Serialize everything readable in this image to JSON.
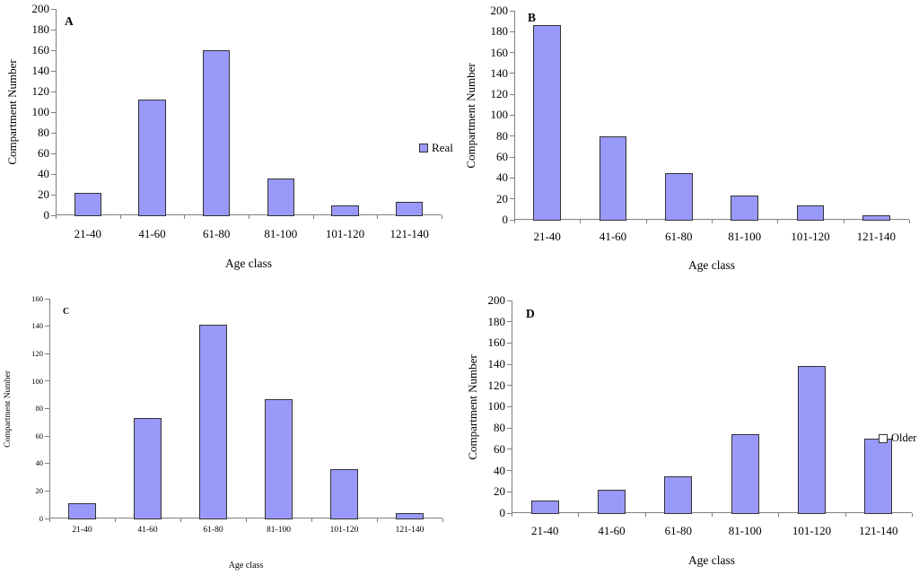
{
  "chart_data": [
    {
      "type": "bar",
      "panel_label": "A",
      "title": "",
      "categories": [
        "21-40",
        "41-60",
        "61-80",
        "81-100",
        "101-120",
        "121-140"
      ],
      "values": [
        22,
        112,
        160,
        36,
        10,
        13
      ],
      "xlabel": "Age class",
      "ylabel": "Compartment Number",
      "ylim": [
        0,
        200
      ],
      "yticks": [
        0,
        20,
        40,
        60,
        80,
        100,
        120,
        140,
        160,
        180,
        200
      ],
      "grid": false,
      "legend": {
        "label": "Real",
        "marker": "filled-square",
        "position": "right-middle"
      }
    },
    {
      "type": "bar",
      "panel_label": "B",
      "title": "",
      "categories": [
        "21-40",
        "41-60",
        "61-80",
        "81-100",
        "101-120",
        "121-140"
      ],
      "values": [
        186,
        80,
        45,
        23,
        14,
        4
      ],
      "xlabel": "Age class",
      "ylabel": "Compartment Number",
      "ylim": [
        0,
        200
      ],
      "yticks": [
        0,
        20,
        40,
        60,
        80,
        100,
        120,
        140,
        160,
        180,
        200
      ],
      "grid": false
    },
    {
      "type": "bar",
      "panel_label": "C",
      "title": "",
      "categories": [
        "21-40",
        "41-60",
        "61-80",
        "81-100",
        "101-120",
        "121-140"
      ],
      "values": [
        11,
        73,
        141,
        87,
        36,
        4
      ],
      "xlabel": "Age class",
      "ylabel": "Compartment Number",
      "ylim": [
        0,
        160
      ],
      "yticks": [
        0,
        20,
        40,
        60,
        80,
        100,
        120,
        140,
        160
      ],
      "grid": false
    },
    {
      "type": "bar",
      "panel_label": "D",
      "title": "",
      "categories": [
        "21-40",
        "41-60",
        "61-80",
        "81-100",
        "101-120",
        "121-140"
      ],
      "values": [
        12,
        22,
        35,
        74,
        138,
        70
      ],
      "xlabel": "Age class",
      "ylabel": "Compartment Number",
      "ylim": [
        0,
        200
      ],
      "yticks": [
        0,
        20,
        40,
        60,
        80,
        100,
        120,
        140,
        160,
        180,
        200
      ],
      "grid": false,
      "legend": {
        "label": "Older",
        "marker": "open-square",
        "position": "overlay-on-last-bar"
      }
    }
  ],
  "colors": {
    "bar_fill": "#9999FA",
    "bar_border": "#333333",
    "axis_line": "#808080",
    "legend_open_fill": "#FFFFFF",
    "text": "#000000"
  }
}
